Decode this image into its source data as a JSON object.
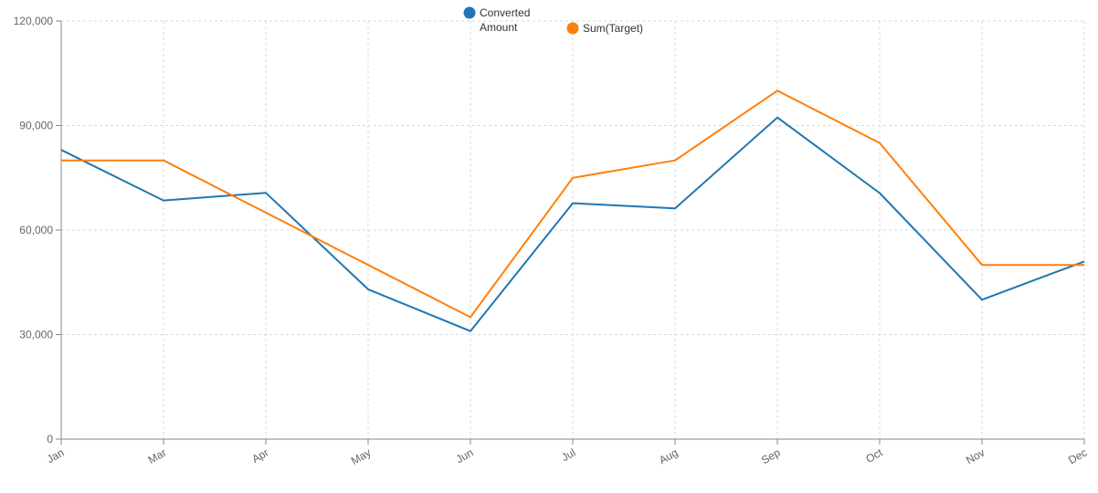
{
  "chart_data": {
    "type": "line",
    "categories": [
      "Jan",
      "Mar",
      "Apr",
      "May",
      "Jun",
      "Jul",
      "Aug",
      "Sep",
      "Oct",
      "Nov",
      "Dec"
    ],
    "series": [
      {
        "name": "Converted Amount",
        "legend_lines": [
          "Converted",
          "Amount"
        ],
        "color": "#1f77b4",
        "values": [
          83000,
          68500,
          70700,
          43000,
          31000,
          67700,
          66200,
          92300,
          70600,
          40000,
          51000
        ]
      },
      {
        "name": "Sum(Target)",
        "legend_lines": [
          "Sum(Target)"
        ],
        "color": "#ff7f0e",
        "values": [
          80000,
          80000,
          65000,
          50000,
          35000,
          75000,
          80000,
          100000,
          85000,
          50000,
          50000
        ]
      }
    ],
    "ylim": [
      0,
      120000
    ],
    "yticks": [
      0,
      30000,
      60000,
      90000,
      120000
    ],
    "ytick_labels": [
      "0",
      "30,000",
      "60,000",
      "90,000",
      "120,000"
    ],
    "grid": true,
    "legend_position": "top-center"
  }
}
